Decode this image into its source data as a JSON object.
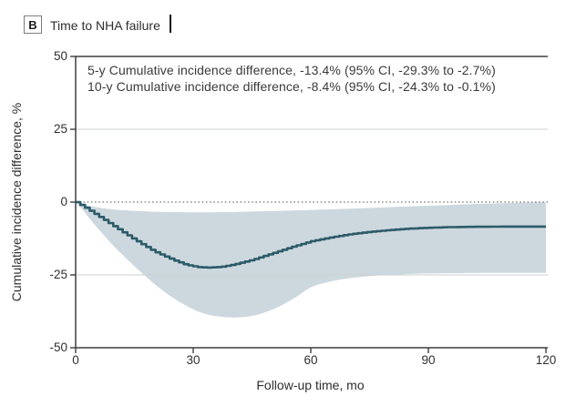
{
  "header": {
    "panel_label": "B",
    "title": "Time to NHA failure"
  },
  "annotations": [
    "5-y Cumulative incidence difference, -13.4% (95% CI, -29.3% to -2.7%)",
    "10-y Cumulative incidence difference, -8.4% (95% CI, -24.3% to -0.1%)"
  ],
  "chart_data": {
    "type": "line",
    "title": "Time to NHA failure",
    "xlabel": "Follow-up time, mo",
    "ylabel": "Cumulative incidence difference, %",
    "xlim": [
      0,
      120
    ],
    "ylim": [
      -50,
      50
    ],
    "xticks": [
      0,
      30,
      60,
      90,
      120
    ],
    "yticks": [
      50,
      25,
      0,
      -25,
      -50
    ],
    "gridlines": {
      "solid": [
        25,
        -25
      ],
      "dotted": [
        0
      ]
    },
    "legend": "none",
    "estimates": [
      {
        "horizon": "5-y",
        "months": 60,
        "difference_pct": -13.4,
        "ci_low_pct": -29.3,
        "ci_high_pct": -2.7
      },
      {
        "horizon": "10-y",
        "months": 120,
        "difference_pct": -8.4,
        "ci_low_pct": -24.3,
        "ci_high_pct": -0.1
      }
    ],
    "colors": {
      "line": "#2c5b68",
      "band": "#cdd8de",
      "grid": "#cbcfd1",
      "zero_line": "#555555",
      "axis": "#3f3f3f"
    },
    "series": [
      {
        "name": "Cumulative incidence difference",
        "role": "median",
        "style": "step",
        "x": [
          0,
          2,
          5,
          10,
          15,
          20,
          25,
          28,
          31,
          34,
          37,
          40,
          45,
          50,
          55,
          60,
          65,
          70,
          75,
          80,
          85,
          90,
          95,
          100,
          105,
          110,
          115,
          120
        ],
        "y": [
          0,
          -1.6,
          -4.2,
          -8.6,
          -13,
          -17,
          -20,
          -21.5,
          -22.3,
          -22.5,
          -22.2,
          -21.5,
          -19.8,
          -17.6,
          -15.4,
          -13.4,
          -12.1,
          -11,
          -10.2,
          -9.6,
          -9.1,
          -8.8,
          -8.6,
          -8.5,
          -8.45,
          -8.4,
          -8.4,
          -8.4
        ]
      },
      {
        "name": "95% CI upper bound",
        "role": "ci_upper",
        "style": "band-edge",
        "x": [
          0,
          2,
          5,
          10,
          15,
          20,
          25,
          30,
          35,
          40,
          45,
          50,
          55,
          60,
          65,
          70,
          75,
          80,
          85,
          90,
          95,
          100,
          105,
          110,
          115,
          120
        ],
        "y": [
          0,
          -0.8,
          -1.7,
          -2.6,
          -3,
          -3.3,
          -3.45,
          -3.5,
          -3.5,
          -3.4,
          -3.25,
          -3.1,
          -2.9,
          -2.7,
          -2.5,
          -2.25,
          -2,
          -1.75,
          -1.5,
          -1.25,
          -1,
          -0.75,
          -0.55,
          -0.35,
          -0.2,
          -0.1
        ]
      },
      {
        "name": "95% CI lower bound",
        "role": "ci_lower",
        "style": "band-edge",
        "x": [
          0,
          2,
          5,
          10,
          15,
          20,
          25,
          30,
          33,
          36,
          40,
          44,
          48,
          52,
          56,
          60,
          64,
          68,
          72,
          76,
          80,
          85,
          90,
          95,
          100,
          105,
          110,
          115,
          120
        ],
        "y": [
          0,
          -3,
          -8,
          -15.5,
          -22,
          -28,
          -33,
          -36.8,
          -38.3,
          -39.2,
          -39.6,
          -39.3,
          -38,
          -35.8,
          -32.8,
          -29.3,
          -27.6,
          -26.5,
          -25.8,
          -25.3,
          -25,
          -24.7,
          -24.5,
          -24.4,
          -24.35,
          -24.3,
          -24.3,
          -24.3,
          -24.3
        ]
      }
    ]
  }
}
